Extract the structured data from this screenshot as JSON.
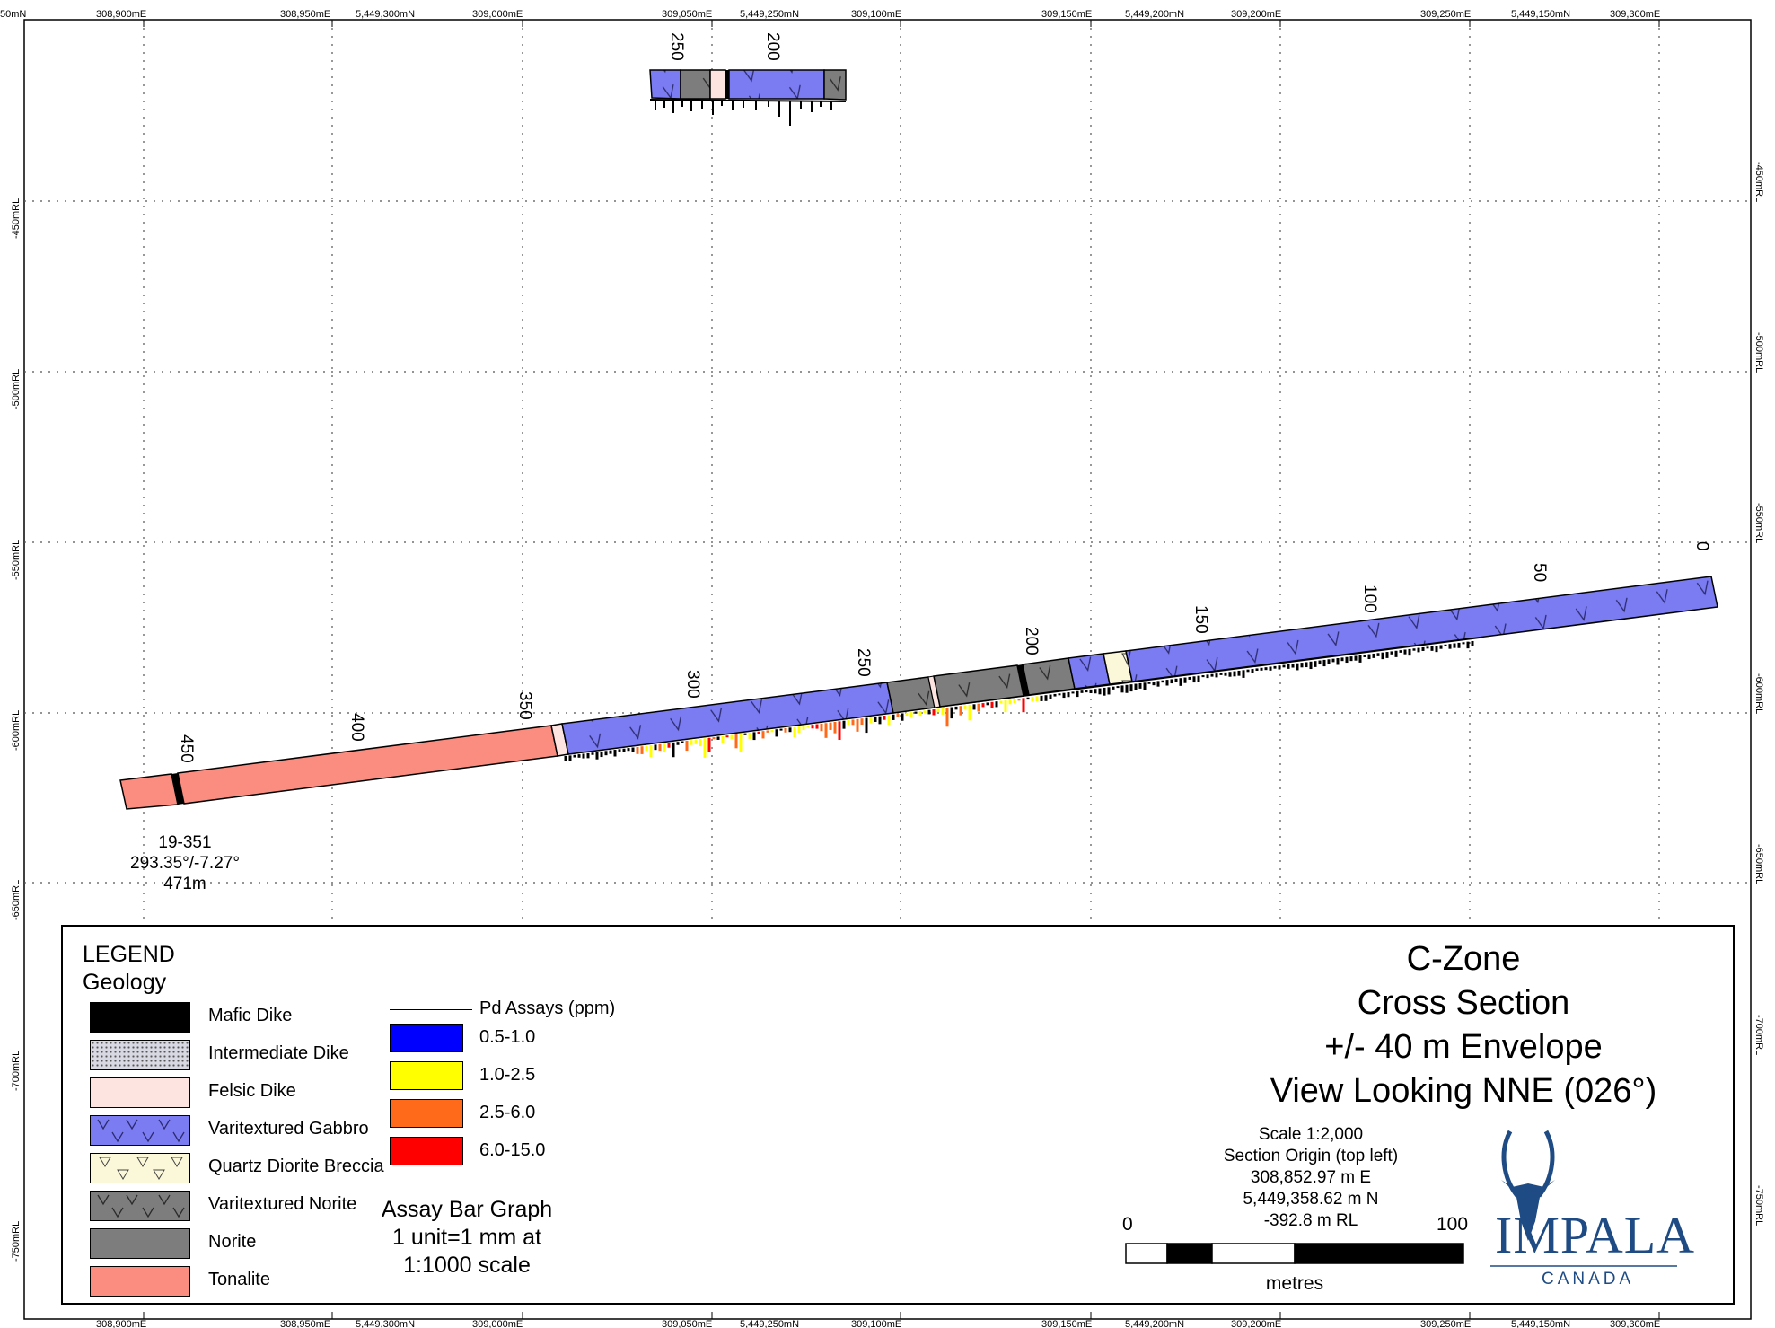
{
  "grid": {
    "top_easting_labels": [
      "308,900mE",
      "308,950mE",
      "5,449,300mN",
      "309,000mE",
      "309,050mE",
      "5,449,250mN",
      "309,100mE",
      "309,150mE",
      "5,449,200mN",
      "309,200mE",
      "309,250mE",
      "5,449,150mN",
      "309,300mE"
    ],
    "top_left_fragment": "50mN",
    "bottom_easting_labels": [
      "308,900mE",
      "308,950mE",
      "5,449,300mN",
      "309,000mE",
      "309,050mE",
      "5,449,250mN",
      "309,100mE",
      "309,150mE",
      "5,449,200mN",
      "309,200mE",
      "309,250mE",
      "5,449,150mN",
      "309,300mE"
    ],
    "rl_labels": [
      "-450mRL",
      "-500mRL",
      "-550mRL",
      "-600mRL",
      "-650mRL",
      "-700mRL",
      "-750mRL"
    ]
  },
  "upper_hole": {
    "depth_labels": [
      "250",
      "200"
    ]
  },
  "main_hole": {
    "depth_labels": [
      "450",
      "400",
      "350",
      "300",
      "250",
      "200",
      "150",
      "100",
      "50",
      "0"
    ],
    "hole_id": "19-351",
    "orientation": "293.35°/-7.27°",
    "length": "471m"
  },
  "legend": {
    "heading": "LEGEND",
    "subheading": "Geology",
    "geology": [
      {
        "label": "Mafic Dike",
        "color": "#000000"
      },
      {
        "label": "Intermediate Dike",
        "color": "#c9c9d4"
      },
      {
        "label": "Felsic Dike",
        "color": "#fde4e1"
      },
      {
        "label": "Varitextured Gabbro",
        "color": "#7b7bf2"
      },
      {
        "label": "Quartz Diorite Breccia",
        "color": "#fbf7d9"
      },
      {
        "label": "Varitextured Norite",
        "color": "#7d7d7d"
      },
      {
        "label": "Norite",
        "color": "#7d7d7d"
      },
      {
        "label": "Tonalite",
        "color": "#fa8c80"
      }
    ],
    "assay_title": "Pd Assays (ppm)",
    "assays": [
      {
        "label": "0.5-1.0",
        "color": "#0000ff"
      },
      {
        "label": "1.0-2.5",
        "color": "#ffff00"
      },
      {
        "label": "2.5-6.0",
        "color": "#ff6a1a"
      },
      {
        "label": "6.0-15.0",
        "color": "#ff0000"
      }
    ],
    "bar_note": [
      "Assay Bar Graph",
      "1 unit=1 mm at",
      "1:1000 scale"
    ]
  },
  "title": {
    "lines": [
      "C-Zone",
      "Cross Section",
      "+/- 40 m Envelope",
      "View Looking NNE (026°)"
    ]
  },
  "scale": {
    "lines": [
      "Scale 1:2,000",
      "Section Origin (top left)",
      "308,852.97 m E",
      "5,449,358.62 m N",
      "-392.8 m RL"
    ],
    "bar_start": "0",
    "bar_end": "100",
    "unit": "metres"
  },
  "logo": {
    "name": "IMPALA",
    "sub": "CANADA",
    "accent": "#1e4b84"
  }
}
